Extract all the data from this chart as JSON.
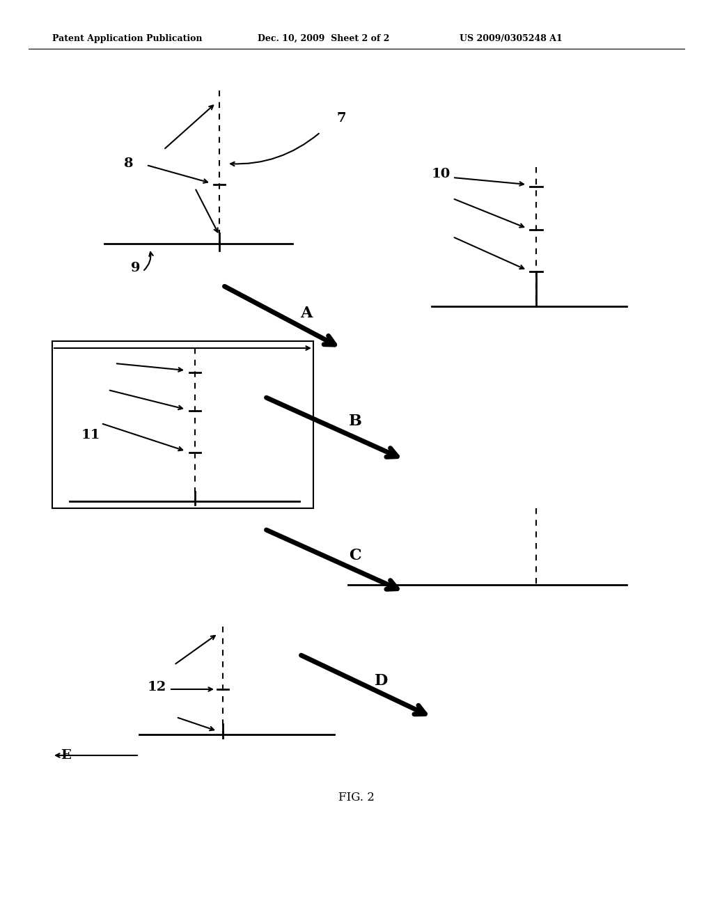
{
  "header_left": "Patent Application Publication",
  "header_mid": "Dec. 10, 2009  Sheet 2 of 2",
  "header_right": "US 2009/0305248 A1",
  "caption": "FIG. 2",
  "bg_color": "#ffffff",
  "text_color": "#000000"
}
